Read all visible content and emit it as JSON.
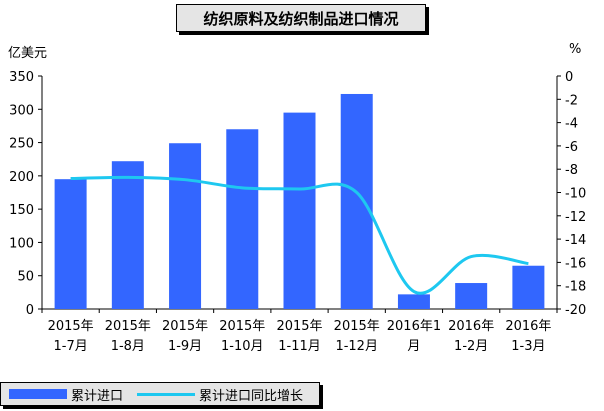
{
  "title": "纺织原料及纺织制品进口情况",
  "left_unit": "亿美元",
  "right_unit": "%",
  "legend": {
    "bar_label": "累计进口",
    "line_label": "累计进口同比增长"
  },
  "colors": {
    "bar": "#3366ff",
    "line": "#1ec8f0"
  },
  "chart_data": {
    "type": "bar",
    "categories": [
      [
        "2015年",
        "1-7月"
      ],
      [
        "2015年",
        "1-8月"
      ],
      [
        "2015年",
        "1-9月"
      ],
      [
        "2015年",
        "1-10月"
      ],
      [
        "2015年",
        "1-11月"
      ],
      [
        "2015年",
        "1-12月"
      ],
      [
        "2016年1",
        "月"
      ],
      [
        "2016年",
        "1-2月"
      ],
      [
        "2016年",
        "1-3月"
      ]
    ],
    "series": [
      {
        "name": "累计进口",
        "type": "bar",
        "axis": "left",
        "values": [
          195,
          222,
          249,
          270,
          295,
          323,
          22,
          39,
          65
        ]
      },
      {
        "name": "累计进口同比增长",
        "type": "line",
        "axis": "right",
        "values": [
          -8.8,
          -8.7,
          -8.9,
          -9.6,
          -9.7,
          -10.0,
          -18.5,
          -15.5,
          -16.1
        ]
      }
    ],
    "y_left": {
      "min": 0,
      "max": 350,
      "ticks": [
        0,
        50,
        100,
        150,
        200,
        250,
        300,
        350
      ]
    },
    "y_right": {
      "min": -20,
      "max": 0,
      "ticks": [
        0,
        -2,
        -4,
        -6,
        -8,
        -10,
        -12,
        -14,
        -16,
        -18,
        -20
      ]
    }
  }
}
